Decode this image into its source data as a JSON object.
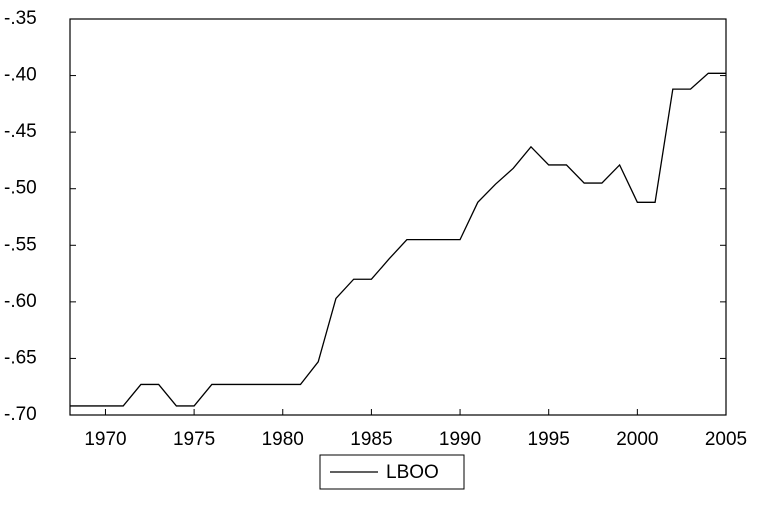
{
  "chart_data": {
    "type": "line",
    "x": [
      1968,
      1969,
      1970,
      1971,
      1972,
      1973,
      1974,
      1975,
      1976,
      1977,
      1978,
      1979,
      1980,
      1981,
      1982,
      1983,
      1984,
      1985,
      1986,
      1987,
      1988,
      1989,
      1990,
      1991,
      1992,
      1993,
      1994,
      1995,
      1996,
      1997,
      1998,
      1999,
      2000,
      2001,
      2002,
      2003,
      2004,
      2005
    ],
    "series": [
      {
        "name": "LBOO",
        "color": "#000000",
        "values": [
          -0.692,
          -0.692,
          -0.692,
          -0.692,
          -0.673,
          -0.673,
          -0.692,
          -0.692,
          -0.673,
          -0.673,
          -0.673,
          -0.673,
          -0.673,
          -0.673,
          -0.653,
          -0.597,
          -0.58,
          -0.58,
          -0.562,
          -0.545,
          -0.545,
          -0.545,
          -0.545,
          -0.512,
          -0.496,
          -0.482,
          -0.463,
          -0.479,
          -0.479,
          -0.495,
          -0.495,
          -0.479,
          -0.512,
          -0.512,
          -0.412,
          -0.412,
          -0.398,
          -0.398
        ]
      }
    ],
    "xlim": [
      1968,
      2005
    ],
    "xticks": [
      1970,
      1975,
      1980,
      1985,
      1990,
      1995,
      2000,
      2005
    ],
    "ylim": [
      -0.7,
      -0.35
    ],
    "yticks": [
      {
        "value": -0.7,
        "label": "-.70"
      },
      {
        "value": -0.65,
        "label": "-.65"
      },
      {
        "value": -0.6,
        "label": "-.60"
      },
      {
        "value": -0.55,
        "label": "-.55"
      },
      {
        "value": -0.5,
        "label": "-.50"
      },
      {
        "value": -0.45,
        "label": "-.45"
      },
      {
        "value": -0.4,
        "label": "-.40"
      },
      {
        "value": -0.35,
        "label": "-.35"
      }
    ],
    "grid": false,
    "legend": "bottom"
  }
}
